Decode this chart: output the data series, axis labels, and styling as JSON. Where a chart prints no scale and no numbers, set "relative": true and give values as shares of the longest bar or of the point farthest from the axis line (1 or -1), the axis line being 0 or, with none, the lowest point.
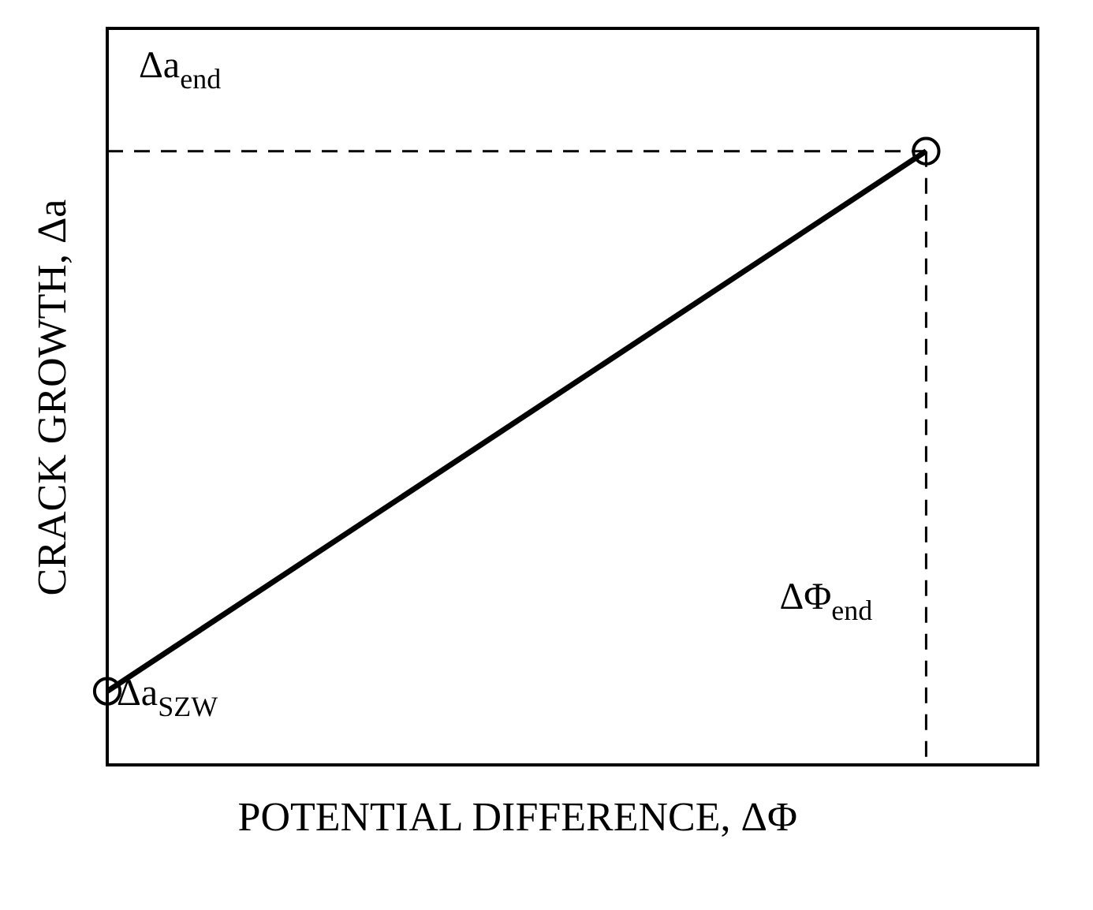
{
  "chart_data": {
    "type": "line",
    "relative": true,
    "xlabel": "POTENTIAL DIFFERENCE, ΔΦ",
    "ylabel": "CRACK GROWTH, Δa",
    "categories": [
      null,
      null
    ],
    "marker": "circle",
    "line_style": "solid",
    "series": [
      {
        "color": "#000000",
        "values": [
          0.12,
          1
        ]
      }
    ],
    "ref_lines": [
      {
        "axis": "y",
        "value": 1,
        "label": "Δa$_{end}$",
        "line_style": "dashed",
        "color": "#000000"
      }
    ],
    "annotations": [
      "Δa$_{SZW}$",
      "ΔΦ$_{end}$"
    ]
  }
}
